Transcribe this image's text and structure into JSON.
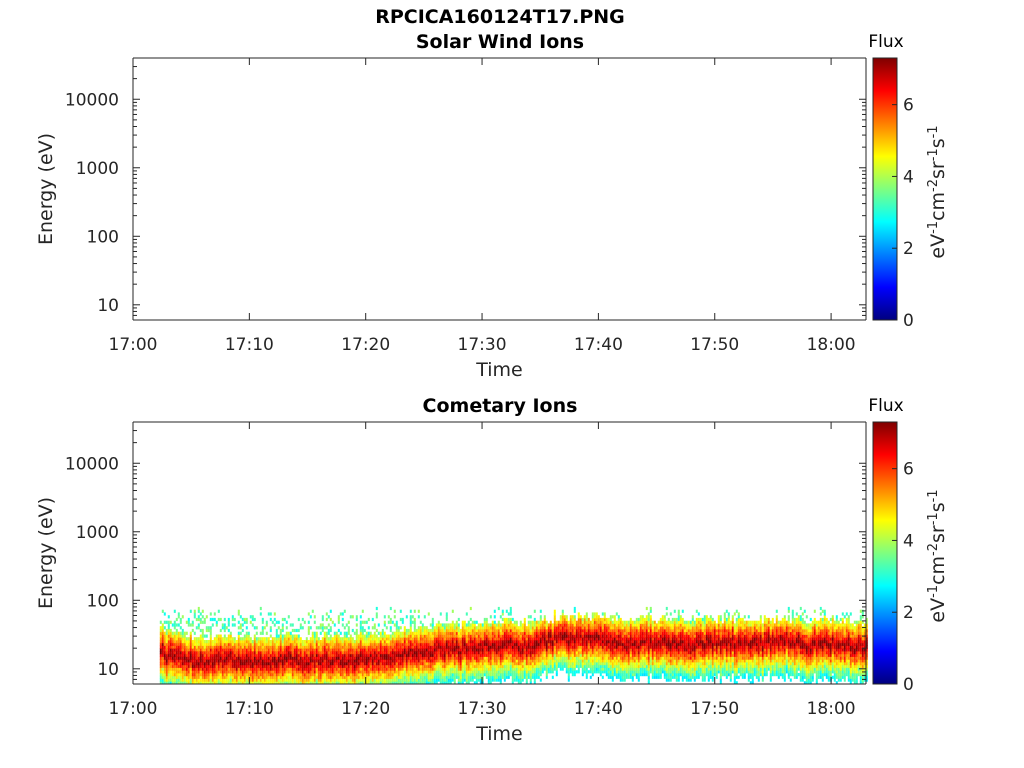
{
  "figure": {
    "title": "RPCICA160124T17.PNG"
  },
  "colorbar": {
    "colormap": "jet",
    "colors": [
      "#00007f",
      "#0000ff",
      "#007fff",
      "#00ffff",
      "#7fff7f",
      "#ffff00",
      "#ff7f00",
      "#ff0000",
      "#7f0000"
    ]
  },
  "chart_data": [
    {
      "type": "heatmap",
      "title": "Solar Wind Ions",
      "xlabel": "Time",
      "ylabel": "Energy (eV)",
      "x_ticks": [
        "17:00",
        "17:10",
        "17:20",
        "17:30",
        "17:40",
        "17:50",
        "18:00"
      ],
      "xlim_minutes": [
        0,
        63
      ],
      "y_scale": "log",
      "ylim": [
        6,
        40000
      ],
      "y_ticks": [
        10,
        100,
        1000,
        10000
      ],
      "y_tick_labels": [
        "10",
        "100",
        "1000",
        "10000"
      ],
      "colorbar_title": "Flux",
      "colorbar_label": "eV-1cm-2sr-1s-1",
      "colorbar_range": [
        0,
        7.3
      ],
      "colorbar_ticks": [
        "0",
        "2",
        "4",
        "6"
      ],
      "grid": false,
      "data": []
    },
    {
      "type": "heatmap",
      "title": "Cometary Ions",
      "xlabel": "Time",
      "ylabel": "Energy (eV)",
      "x_ticks": [
        "17:00",
        "17:10",
        "17:20",
        "17:30",
        "17:40",
        "17:50",
        "18:00"
      ],
      "xlim_minutes": [
        0,
        63
      ],
      "y_scale": "log",
      "ylim": [
        6,
        40000
      ],
      "y_ticks": [
        10,
        100,
        1000,
        10000
      ],
      "y_tick_labels": [
        "10",
        "100",
        "1000",
        "10000"
      ],
      "colorbar_title": "Flux",
      "colorbar_label": "eV-1cm-2sr-1s-1",
      "colorbar_range": [
        0,
        7.3
      ],
      "colorbar_ticks": [
        "0",
        "2",
        "4",
        "6"
      ],
      "grid": false,
      "data_start_minute": 2.3,
      "data_end_minute": 63,
      "peak_energy_eV": [
        [
          2.5,
          16
        ],
        [
          4,
          15
        ],
        [
          6,
          13
        ],
        [
          8,
          14
        ],
        [
          10,
          13
        ],
        [
          12,
          14
        ],
        [
          14,
          13
        ],
        [
          16,
          14
        ],
        [
          18,
          13
        ],
        [
          20,
          14
        ],
        [
          22,
          15
        ],
        [
          24,
          17
        ],
        [
          26,
          20
        ],
        [
          28,
          19
        ],
        [
          30,
          22
        ],
        [
          32,
          23
        ],
        [
          34,
          21
        ],
        [
          36,
          28
        ],
        [
          38,
          29
        ],
        [
          40,
          27
        ],
        [
          42,
          24
        ],
        [
          44,
          25
        ],
        [
          46,
          24
        ],
        [
          48,
          23
        ],
        [
          50,
          25
        ],
        [
          52,
          24
        ],
        [
          54,
          23
        ],
        [
          56,
          27
        ],
        [
          58,
          22
        ],
        [
          60,
          24
        ],
        [
          62,
          21
        ],
        [
          63,
          20
        ]
      ],
      "upper_edge_eV": 80,
      "lower_edge_eV": 6
    }
  ]
}
